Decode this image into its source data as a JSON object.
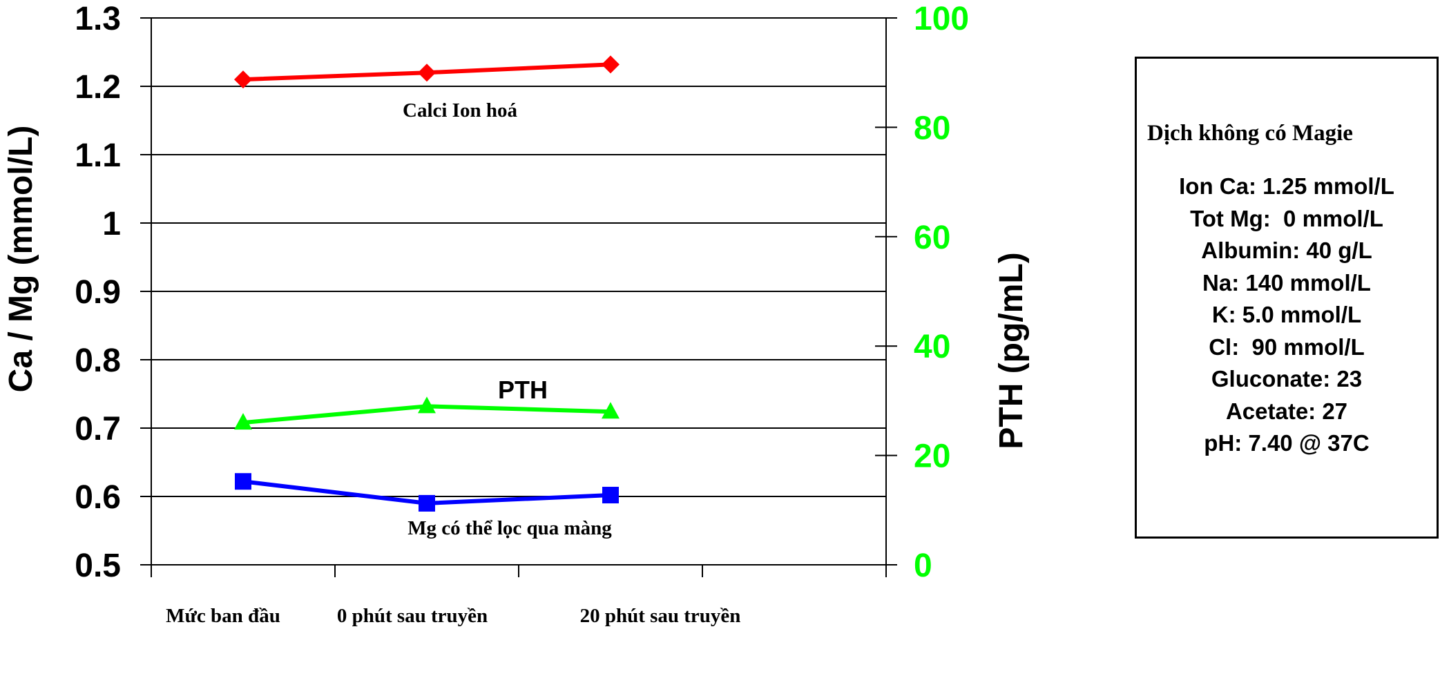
{
  "chart_data": {
    "type": "line",
    "categories": [
      "Mức ban đầu",
      "0 phút sau truyền",
      "20 phút sau truyền"
    ],
    "ylabel": "Ca / Mg (mmol/L)",
    "y2label": "PTH (pg/mL)",
    "ylim": [
      0.5,
      1.3
    ],
    "y2lim": [
      0,
      100
    ],
    "yticks": [
      "1.3",
      "1.2",
      "1.1",
      "1",
      "0.9",
      "0.8",
      "0.7",
      "0.6",
      "0.5"
    ],
    "y2ticks": [
      "100",
      "80",
      "60",
      "40",
      "20",
      "0"
    ],
    "grid": true,
    "series": [
      {
        "name": "Calci Ion hoá",
        "axis": "left",
        "color": "#ff0000",
        "marker": "diamond",
        "values": [
          1.21,
          1.22,
          1.232
        ]
      },
      {
        "name": "PTH",
        "axis": "right",
        "color": "#00ff00",
        "marker": "triangle",
        "values": [
          26,
          29,
          28
        ]
      },
      {
        "name": "Mg có thể lọc qua màng",
        "axis": "left",
        "color": "#0000ff",
        "marker": "square",
        "values": [
          0.622,
          0.59,
          0.602
        ]
      }
    ]
  },
  "info_box": {
    "title": "Dịch không có Magie",
    "lines": [
      "Ion Ca: 1.25 mmol/L",
      "Tot Mg:  0 mmol/L",
      "Albumin: 40 g/L",
      "Na: 140 mmol/L",
      "K: 5.0 mmol/L",
      "Cl:  90 mmol/L",
      "Gluconate: 23",
      "Acetate: 27",
      "pH: 7.40 @ 37C"
    ]
  }
}
